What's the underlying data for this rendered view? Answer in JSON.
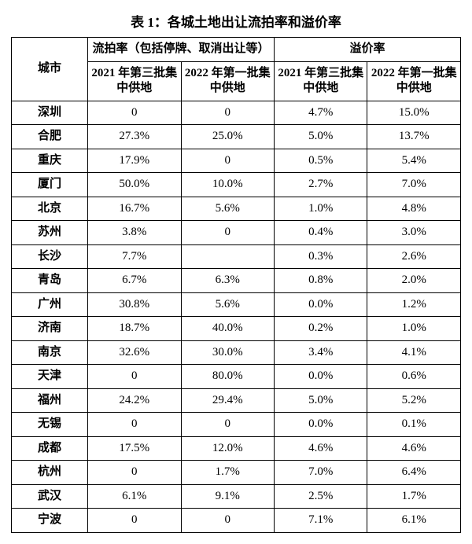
{
  "table": {
    "title": "表 1：各城土地出让流拍率和溢价率",
    "header": {
      "city_label": "城市",
      "group_failed": "流拍率（包括停牌、取消出让等）",
      "group_premium": "溢价率",
      "col_2021_q3": "2021 年第三批集中供地",
      "col_2022_q1": "2022 年第一批集中供地"
    },
    "rows": [
      {
        "city": "深圳",
        "f21": "0",
        "f22": "0",
        "p21": "4.7%",
        "p22": "15.0%"
      },
      {
        "city": "合肥",
        "f21": "27.3%",
        "f22": "25.0%",
        "p21": "5.0%",
        "p22": "13.7%"
      },
      {
        "city": "重庆",
        "f21": "17.9%",
        "f22": "0",
        "p21": "0.5%",
        "p22": "5.4%"
      },
      {
        "city": "厦门",
        "f21": "50.0%",
        "f22": "10.0%",
        "p21": "2.7%",
        "p22": "7.0%"
      },
      {
        "city": "北京",
        "f21": "16.7%",
        "f22": "5.6%",
        "p21": "1.0%",
        "p22": "4.8%"
      },
      {
        "city": "苏州",
        "f21": "3.8%",
        "f22": "0",
        "p21": "0.4%",
        "p22": "3.0%"
      },
      {
        "city": "长沙",
        "f21": "7.7%",
        "f22": "",
        "p21": "0.3%",
        "p22": "2.6%"
      },
      {
        "city": "青岛",
        "f21": "6.7%",
        "f22": "6.3%",
        "p21": "0.8%",
        "p22": "2.0%"
      },
      {
        "city": "广州",
        "f21": "30.8%",
        "f22": "5.6%",
        "p21": "0.0%",
        "p22": "1.2%"
      },
      {
        "city": "济南",
        "f21": "18.7%",
        "f22": "40.0%",
        "p21": "0.2%",
        "p22": "1.0%"
      },
      {
        "city": "南京",
        "f21": "32.6%",
        "f22": "30.0%",
        "p21": "3.4%",
        "p22": "4.1%"
      },
      {
        "city": "天津",
        "f21": "0",
        "f22": "80.0%",
        "p21": "0.0%",
        "p22": "0.6%"
      },
      {
        "city": "福州",
        "f21": "24.2%",
        "f22": "29.4%",
        "p21": "5.0%",
        "p22": "5.2%"
      },
      {
        "city": "无锡",
        "f21": "0",
        "f22": "0",
        "p21": "0.0%",
        "p22": "0.1%"
      },
      {
        "city": "成都",
        "f21": "17.5%",
        "f22": "12.0%",
        "p21": "4.6%",
        "p22": "4.6%"
      },
      {
        "city": "杭州",
        "f21": "0",
        "f22": "1.7%",
        "p21": "7.0%",
        "p22": "6.4%"
      },
      {
        "city": "武汉",
        "f21": "6.1%",
        "f22": "9.1%",
        "p21": "2.5%",
        "p22": "1.7%"
      },
      {
        "city": "宁波",
        "f21": "0",
        "f22": "0",
        "p21": "7.1%",
        "p22": "6.1%"
      }
    ],
    "colors": {
      "text": "#000000",
      "border": "#000000",
      "background": "#ffffff"
    },
    "fonts": {
      "title_size_pt": 13,
      "cell_size_pt": 11,
      "family": "SimSun / Songti serif"
    }
  }
}
